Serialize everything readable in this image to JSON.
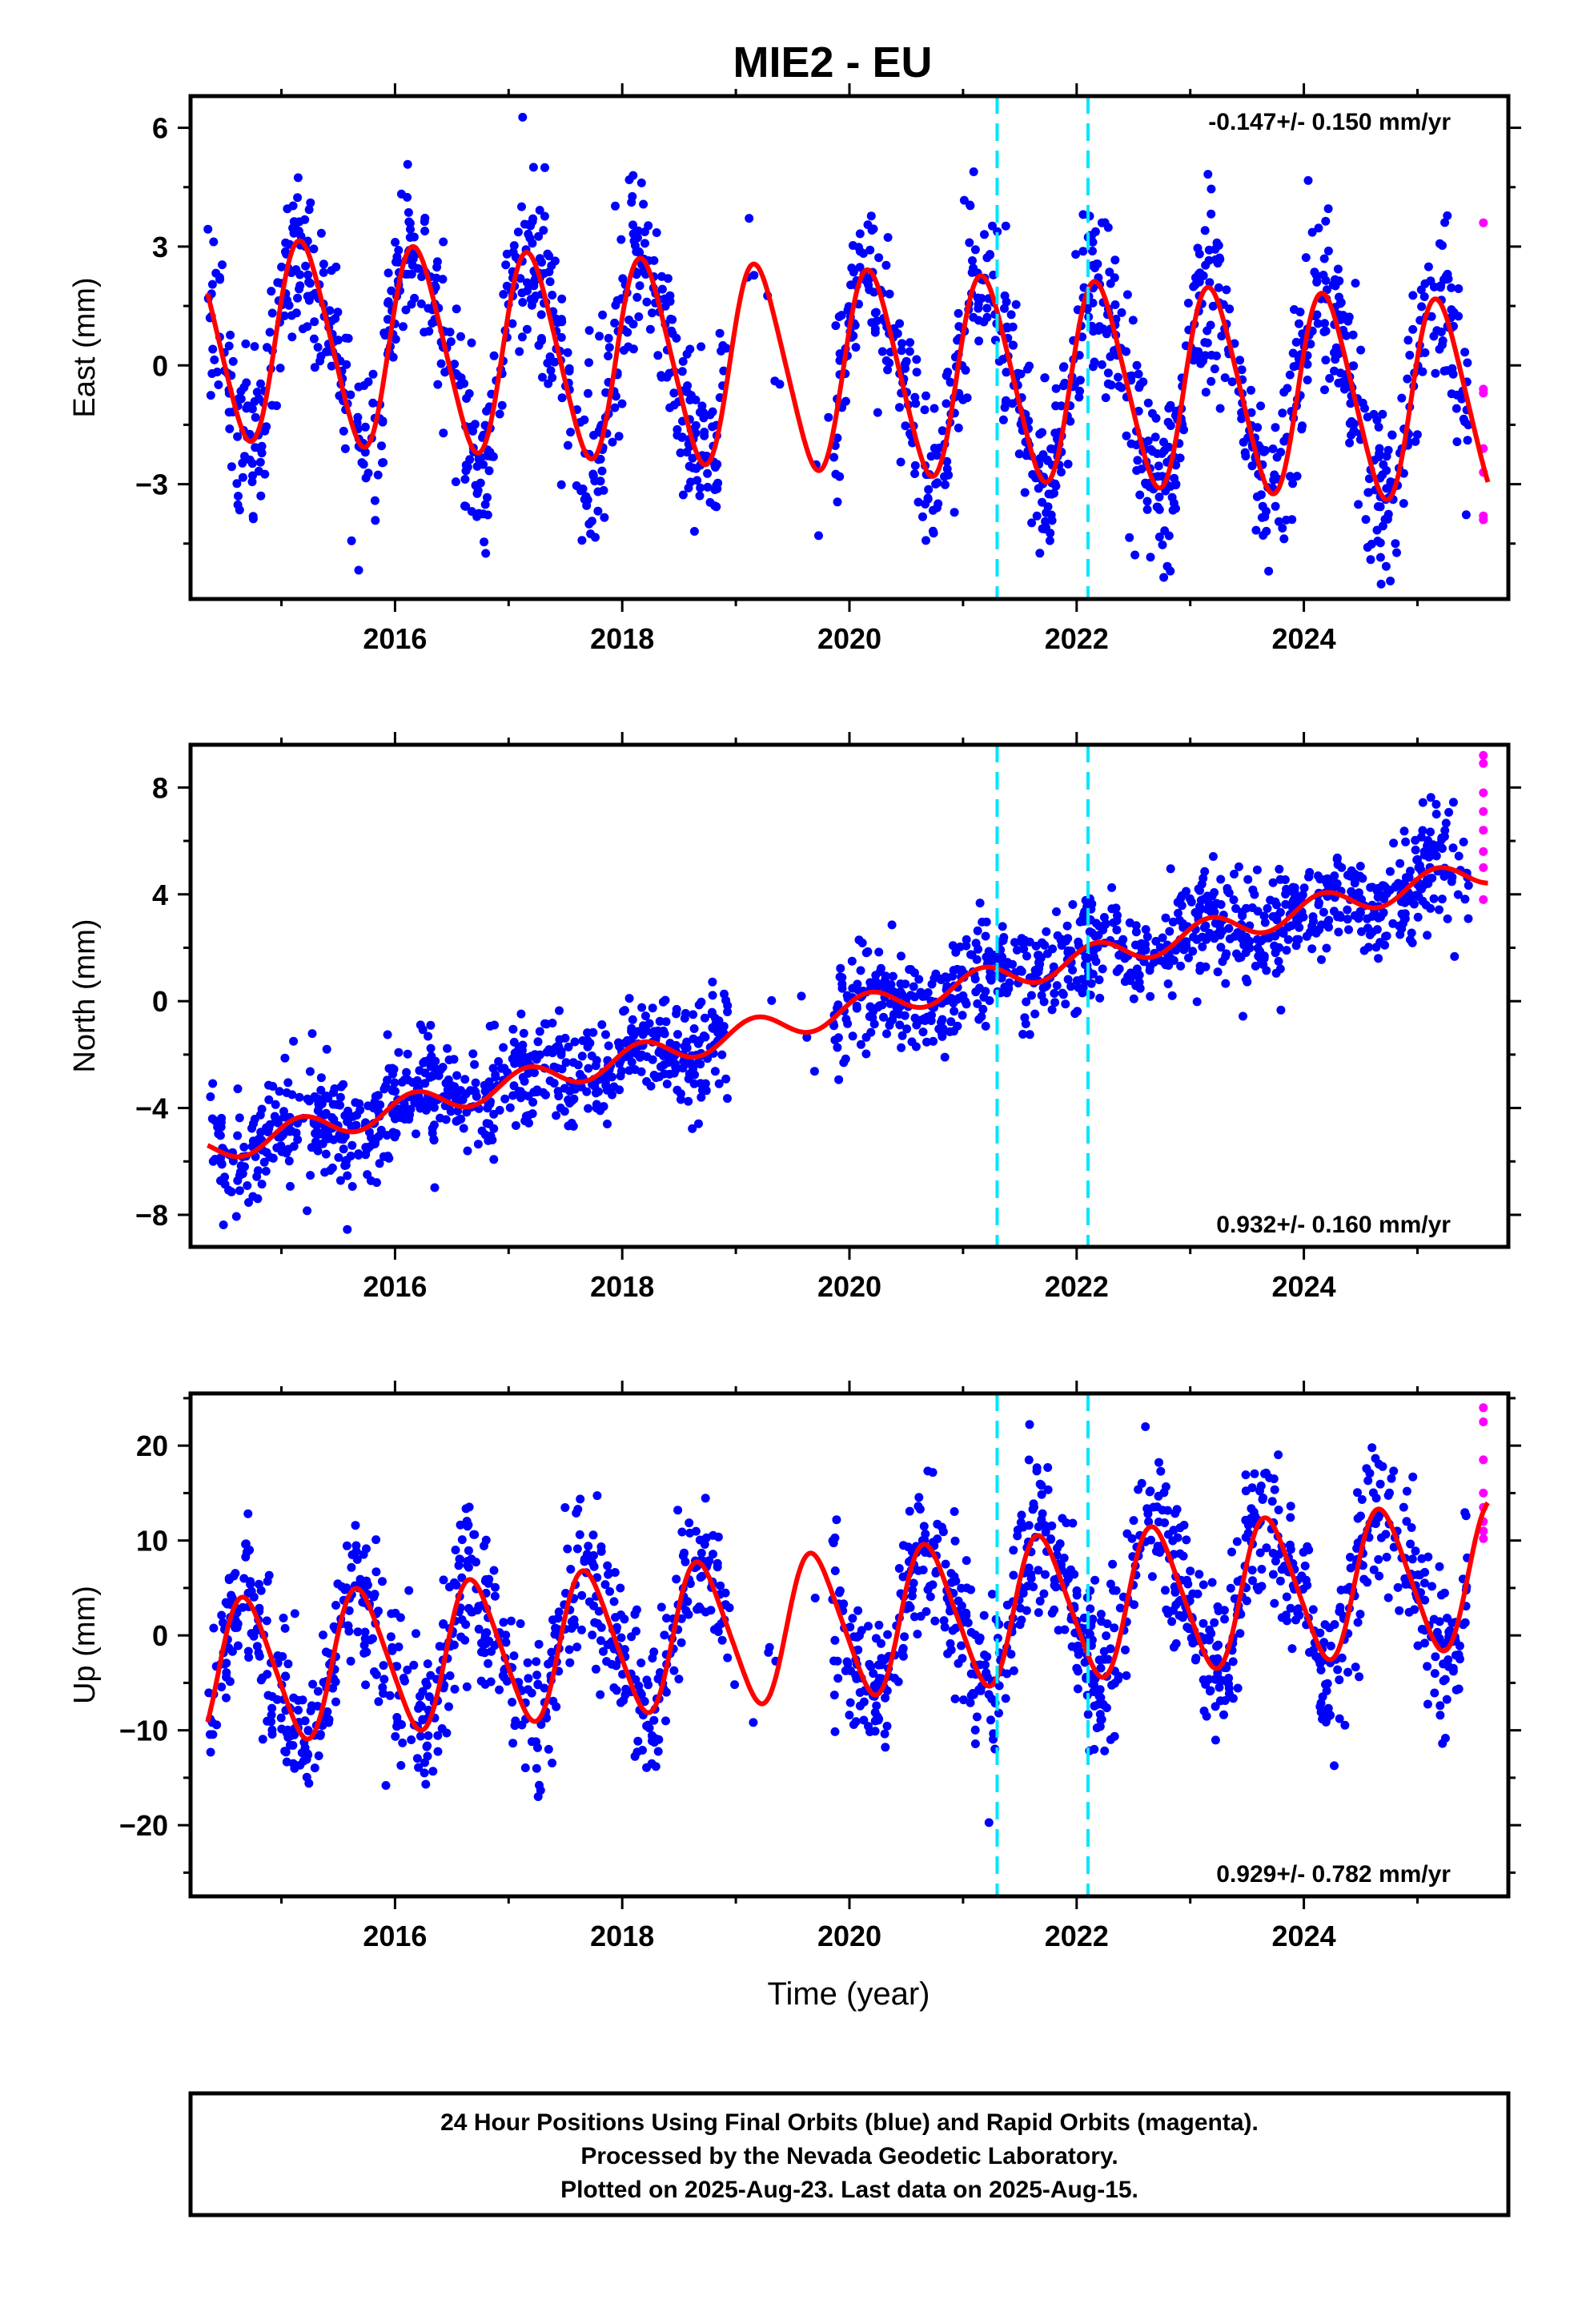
{
  "title": "MIE2 - EU",
  "colors": {
    "final_orbits": "#0000ff",
    "rapid_orbits": "#ff00ff",
    "model": "#ff0000",
    "events": "#00e5ff",
    "frame": "#000000"
  },
  "chart_data": [
    {
      "type": "scatter",
      "name": "east",
      "ylabel": "East (mm)",
      "xlabel": "",
      "xlim": [
        2014.2,
        2025.8
      ],
      "ylim": [
        -5.9,
        6.8
      ],
      "yticks": [
        -3,
        0,
        3,
        6
      ],
      "xticks": [
        2016,
        2018,
        2020,
        2022,
        2024
      ],
      "rate_label": "-0.147+/- 0.150 mm/yr",
      "rate_position": "top-right",
      "model": {
        "offset": 0.7,
        "trend": -0.147,
        "amplitude": 2.5,
        "harmonic2": 0.3,
        "phase_deg": 20,
        "start": 2014.35,
        "end": 2025.62
      },
      "final_orbits_scatter": {
        "sigma": 1.1,
        "count": 1700,
        "gaps": [
          [
            2018.93,
            2019.85
          ]
        ],
        "start": 2014.35,
        "end": 2025.45
      },
      "rapid_orbits_values": [
        3.6,
        -0.6,
        -0.7,
        -2.1,
        -2.7,
        -3.8,
        -3.9
      ],
      "rapid_orbits_dates": 2025.58,
      "events": [
        2021.3,
        2022.1
      ]
    },
    {
      "type": "scatter",
      "name": "north",
      "ylabel": "North (mm)",
      "xlabel": "",
      "xlim": [
        2014.2,
        2025.8
      ],
      "ylim": [
        -9.2,
        9.6
      ],
      "yticks": [
        -8,
        -4,
        0,
        4,
        8
      ],
      "xticks": [
        2016,
        2018,
        2020,
        2022,
        2024
      ],
      "rate_label": "0.932+/- 0.160 mm/yr",
      "rate_position": "bottom-right",
      "model": {
        "offset": -5.6,
        "trend": 0.932,
        "amplitude": 0.5,
        "harmonic2": 0.0,
        "phase_deg": 30,
        "start": 2014.35,
        "end": 2025.62
      },
      "final_orbits_scatter": {
        "sigma": 1.0,
        "count": 1700,
        "gaps": [
          [
            2018.93,
            2019.85
          ]
        ],
        "start": 2014.35,
        "end": 2025.45
      },
      "rapid_orbits_values": [
        9.2,
        8.9,
        7.8,
        7.1,
        6.4,
        5.6,
        5.0,
        3.8
      ],
      "rapid_orbits_dates": 2025.58,
      "events": [
        2021.3,
        2022.1
      ]
    },
    {
      "type": "scatter",
      "name": "up",
      "ylabel": "Up (mm)",
      "xlabel": "Time (year)",
      "xlim": [
        2014.2,
        2025.8
      ],
      "ylim": [
        -27.5,
        25.5
      ],
      "yticks": [
        -20,
        -10,
        0,
        10,
        20
      ],
      "xticks": [
        2016,
        2018,
        2020,
        2022,
        2024
      ],
      "rate_label": "0.929+/- 0.782 mm/yr",
      "rate_position": "bottom-right",
      "model": {
        "offset": -4.0,
        "trend": 0.929,
        "amplitude": 7.5,
        "harmonic2": 1.0,
        "phase_deg": 200,
        "start": 2014.35,
        "end": 2025.62
      },
      "final_orbits_scatter": {
        "sigma": 4.0,
        "count": 1700,
        "gaps": [
          [
            2018.93,
            2019.85
          ]
        ],
        "start": 2014.35,
        "end": 2025.45
      },
      "rapid_orbits_values": [
        24.0,
        22.5,
        18.5,
        15.0,
        13.5,
        12.0,
        11.0,
        10.2
      ],
      "rapid_orbits_dates": 2025.58,
      "events": [
        2021.3,
        2022.1
      ]
    }
  ],
  "footer": {
    "line1": "24 Hour Positions Using Final Orbits (blue) and Rapid Orbits (magenta).",
    "line2": "Processed by the Nevada Geodetic Laboratory.",
    "line3": "Plotted on 2025-Aug-23. Last data on 2025-Aug-15."
  }
}
